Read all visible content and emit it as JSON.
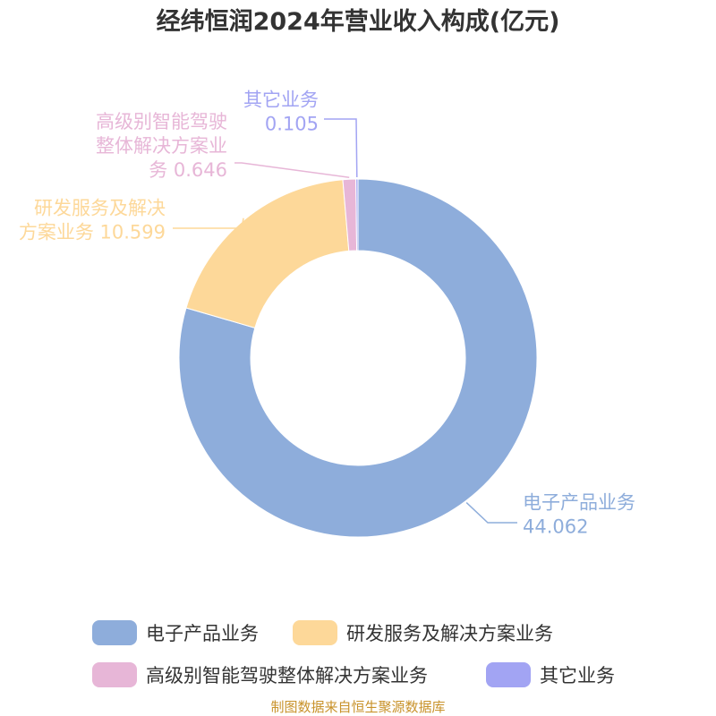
{
  "chart_data": {
    "type": "pie",
    "variant": "donut",
    "title": "经纬恒润2024年营业收入构成(亿元)",
    "slices": [
      {
        "name": "电子产品业务",
        "value": 44.062,
        "color": "#8eaddb",
        "label_lines": [
          "电子产品业务",
          "44.062"
        ]
      },
      {
        "name": "研发服务及解决方案业务",
        "value": 10.599,
        "color": "#fdd899",
        "label_lines": [
          "研发服务及解决",
          "方案业务 10.599"
        ]
      },
      {
        "name": "高级别智能驾驶整体解决方案业务",
        "value": 0.646,
        "color": "#e7b6d7",
        "label_lines": [
          "高级别智能驾驶",
          "整体解决方案业",
          "务 0.646"
        ]
      },
      {
        "name": "其它业务",
        "value": 0.105,
        "color": "#a2a4f3",
        "label_lines": [
          "其它业务",
          "0.105"
        ]
      }
    ],
    "legend": {
      "position": "bottom"
    },
    "source": "制图数据来自恒生聚源数据库"
  }
}
